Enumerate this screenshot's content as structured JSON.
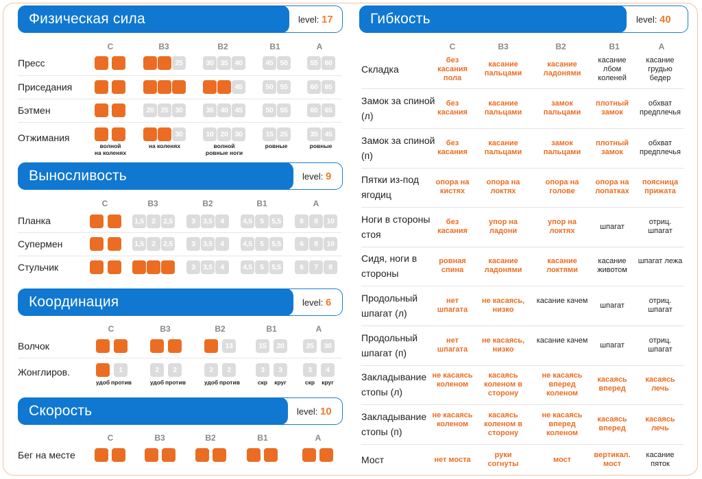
{
  "sections": {
    "strength": {
      "title": "Физическая сила",
      "level_label": "level:",
      "level": "17"
    },
    "endurance": {
      "title": "Выносливость",
      "level_label": "level:",
      "level": "9"
    },
    "coordination": {
      "title": "Координация",
      "level_label": "level:",
      "level": "6"
    },
    "speed": {
      "title": "Скорость",
      "level_label": "level:",
      "level": "10"
    },
    "flexibility": {
      "title": "Гибкость",
      "level_label": "level:",
      "level": "40"
    }
  },
  "grades": [
    "C",
    "B3",
    "B2",
    "B1",
    "A"
  ],
  "strength_rows": [
    {
      "label": "Пресс",
      "B3": "25",
      "B2": [
        "30",
        "35",
        "40"
      ],
      "B1": [
        "45",
        "50"
      ],
      "A": [
        "55",
        "60"
      ]
    },
    {
      "label": "Приседания",
      "B2": "45",
      "B1": [
        "50",
        "55"
      ],
      "A": [
        "60",
        "65"
      ]
    },
    {
      "label": "Бэтмен",
      "B3": [
        "20",
        "25",
        "30"
      ],
      "B2": [
        "35",
        "40",
        "45"
      ],
      "B1": [
        "50",
        "55"
      ],
      "A": [
        "60",
        "65"
      ]
    },
    {
      "label": "Отжимания",
      "B3": "30",
      "B2": [
        "10",
        "20",
        "30"
      ],
      "B1": [
        "15",
        "25"
      ],
      "A": [
        "35",
        "45"
      ],
      "captions": [
        "волной на коленях",
        "на коленях",
        "волной ровные ноги",
        "ровные",
        "ровные"
      ]
    }
  ],
  "strength_captions": [
    "волной",
    "на коленях",
    "на коленях",
    "волной",
    "ровные ноги",
    "ровные",
    "ровные"
  ],
  "endurance_rows": [
    {
      "label": "Планка",
      "B3": [
        "1,5",
        "2",
        "2,5"
      ],
      "B2": [
        "3",
        "3,5",
        "4"
      ],
      "B1": [
        "4,5",
        "5",
        "5,5"
      ],
      "A": [
        "6",
        "8",
        "10"
      ]
    },
    {
      "label": "Супермен",
      "B3": [
        "1,5",
        "2",
        "2,5"
      ],
      "B2": [
        "3",
        "3,5",
        "4"
      ],
      "B1": [
        "4,5",
        "5",
        "5,5"
      ],
      "A": [
        "6",
        "8",
        "10"
      ]
    },
    {
      "label": "Стульчик",
      "B2": [
        "3",
        "3,5",
        "4"
      ],
      "B1": [
        "4,5",
        "5",
        "5,5"
      ],
      "A": [
        "6",
        "7",
        "8"
      ]
    }
  ],
  "coordination_rows": [
    {
      "label": "Волчок",
      "B2": "13",
      "B1": [
        "15",
        "20"
      ],
      "A": [
        "25",
        "30"
      ]
    },
    {
      "label": "Жонглиров.",
      "C": "1",
      "B3": [
        "2",
        "2"
      ],
      "B2": [
        "2",
        "2"
      ],
      "B1": [
        "3",
        "3"
      ],
      "A": [
        "3",
        "4"
      ]
    }
  ],
  "coordination_captions": [
    "удоб",
    "против",
    "удоб",
    "против",
    "удоб",
    "против",
    "скр",
    "круг",
    "скр",
    "круг"
  ],
  "speed_rows": [
    {
      "label": "Бег на месте"
    }
  ],
  "flex_rows": [
    {
      "label": "Складка",
      "cells": [
        "без касания пола",
        "касание пальцами",
        "касание ладонями",
        "касание лбом коленей",
        "касание грудью бедер"
      ]
    },
    {
      "label": "Замок за спиной (л)",
      "cells": [
        "без касания",
        "касание пальцами",
        "замок пальцами",
        "плотный замок",
        "обхват предплечья"
      ]
    },
    {
      "label": "Замок за спиной (п)",
      "cells": [
        "без касания",
        "касание пальцами",
        "замок пальцами",
        "плотный замок",
        "обхват предплечья"
      ]
    },
    {
      "label": "Пятки из-под ягодиц",
      "cells": [
        "опора на кистях",
        "опора на локтях",
        "опора на голове",
        "опора на лопатках",
        "поясница прижата"
      ]
    },
    {
      "label": "Ноги в стороны стоя",
      "cells": [
        "без касания",
        "упор на ладони",
        "упор на локтях",
        "шпагат",
        "отриц. шпагат"
      ]
    },
    {
      "label": "Сидя, ноги в стороны",
      "cells": [
        "ровная спина",
        "касание ладонями",
        "касание локтями",
        "касание животом",
        "шпагат лежа"
      ]
    },
    {
      "label": "Продольный шпагат (л)",
      "cells": [
        "нет шпагата",
        "не касаясь, низко",
        "касание качем",
        "шпагат",
        "отриц. шпагат"
      ]
    },
    {
      "label": "Продольный шпагат (п)",
      "cells": [
        "нет шпагата",
        "не касаясь, низко",
        "касание качем",
        "шпагат",
        "отриц. шпагат"
      ]
    },
    {
      "label": "Закладывание стопы (л)",
      "cells": [
        "не касаясь коленом",
        "касаясь коленом в сторону",
        "не касаясь вперед коленом",
        "касаясь вперед",
        "касаясь лечь"
      ]
    },
    {
      "label": "Закладывание стопы (п)",
      "cells": [
        "не касаясь коленом",
        "касаясь коленом в сторону",
        "не касаясь вперед коленом",
        "касаясь вперед",
        "касаясь лечь"
      ]
    },
    {
      "label": "Мост",
      "cells": [
        "нет моста",
        "руки согнуты",
        "мост",
        "вертикал. мост",
        "касание пяток"
      ]
    }
  ],
  "colors": {
    "accent": "#1078d0",
    "done": "#eb6d23",
    "todo": "#dcdcdc"
  }
}
